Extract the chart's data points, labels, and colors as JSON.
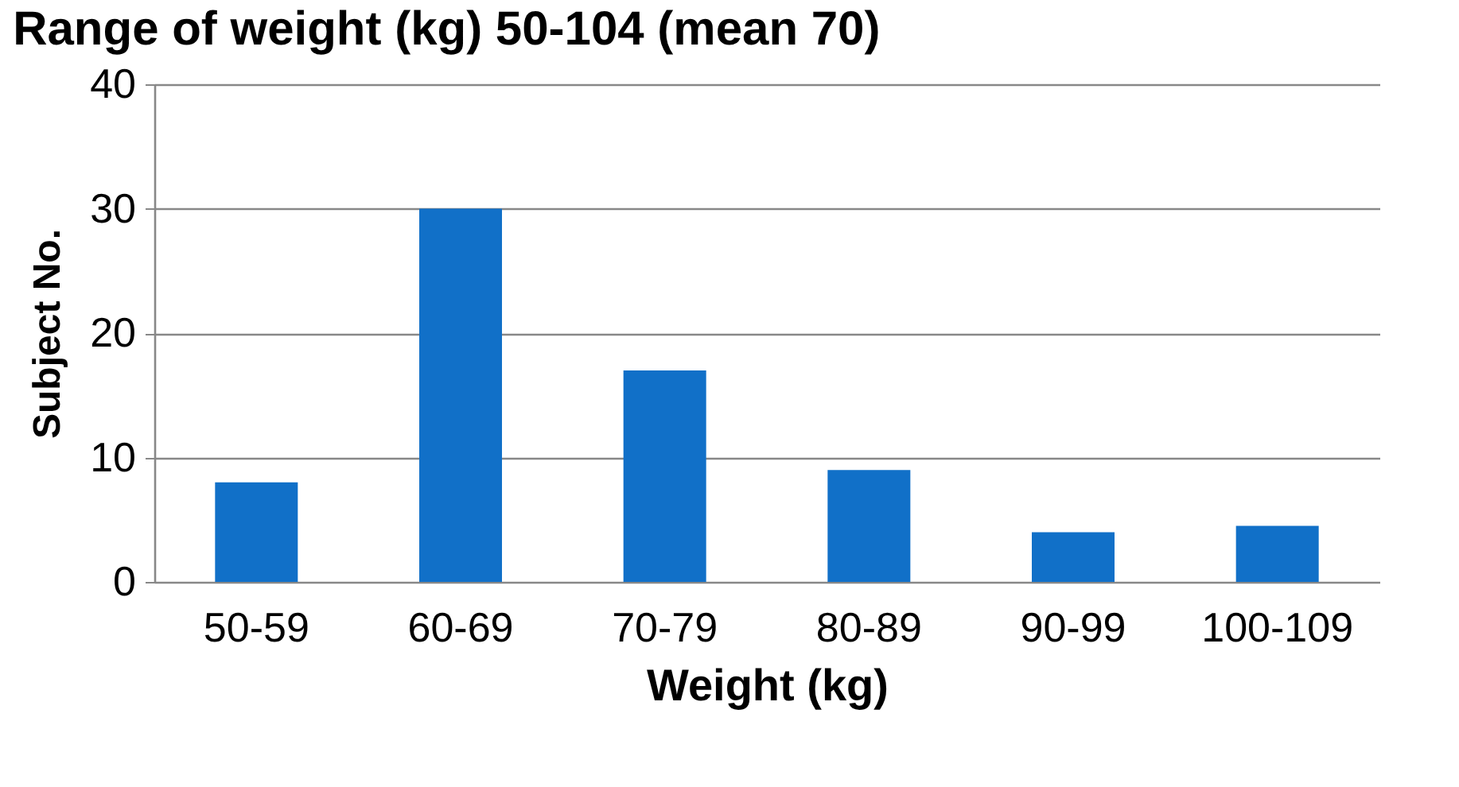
{
  "chart_data": {
    "type": "bar",
    "title": "Range of weight (kg) 50-104 (mean 70)",
    "xlabel": "Weight (kg)",
    "ylabel": "Subject No.",
    "categories": [
      "50-59",
      "60-69",
      "70-79",
      "80-89",
      "90-99",
      "100-109"
    ],
    "values": [
      8,
      30,
      17,
      9,
      4,
      4.5
    ],
    "color": "#1170c8",
    "ylim": [
      0,
      40
    ],
    "yticks": [
      0,
      10,
      20,
      30,
      40
    ],
    "grid": "y",
    "legend": false
  }
}
